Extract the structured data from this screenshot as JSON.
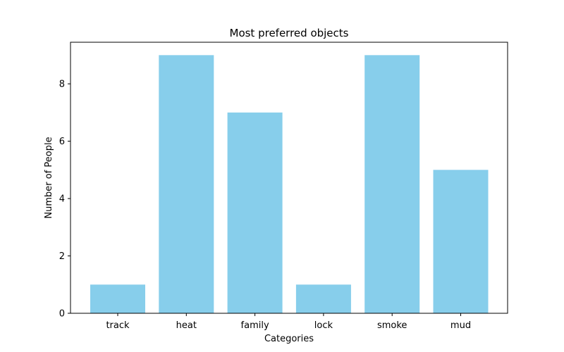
{
  "chart_data": {
    "type": "bar",
    "title": "Most preferred objects",
    "xlabel": "Categories",
    "ylabel": "Number of People",
    "categories": [
      "track",
      "heat",
      "family",
      "lock",
      "smoke",
      "mud"
    ],
    "values": [
      1,
      9,
      7,
      1,
      9,
      5
    ],
    "ylim": [
      0,
      9.45
    ],
    "yticks": [
      0,
      2,
      4,
      6,
      8
    ],
    "grid": false,
    "legend": "none",
    "bar_color": "#87CEEB",
    "axis_color": "#000000"
  }
}
